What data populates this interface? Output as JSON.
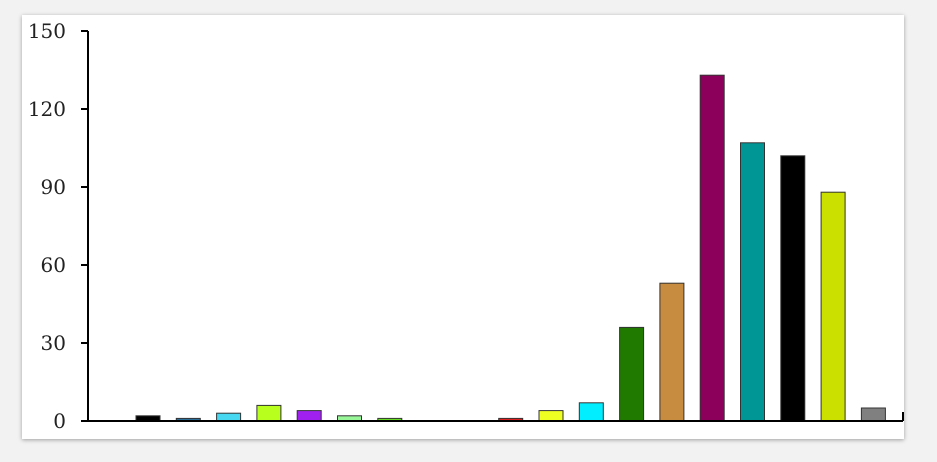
{
  "chart_data": {
    "type": "bar",
    "title": "",
    "xlabel": "",
    "ylabel": "",
    "ylim": [
      0,
      150
    ],
    "yticks": [
      0,
      30,
      60,
      90,
      120,
      150
    ],
    "grid": false,
    "values": [
      2,
      1,
      3,
      6,
      4,
      2,
      1,
      0,
      0,
      1,
      4,
      7,
      36,
      53,
      133,
      107,
      102,
      88,
      5
    ],
    "colors": [
      "#000000",
      "#2a6f9a",
      "#45d8f0",
      "#b8ff1e",
      "#a020f0",
      "#98f598",
      "#66dd22",
      "#ffffff",
      "#ffffff",
      "#e02020",
      "#eeff22",
      "#00eeff",
      "#207a00",
      "#c88c40",
      "#8c005c",
      "#009696",
      "#000000",
      "#cce000",
      "#808080"
    ]
  }
}
